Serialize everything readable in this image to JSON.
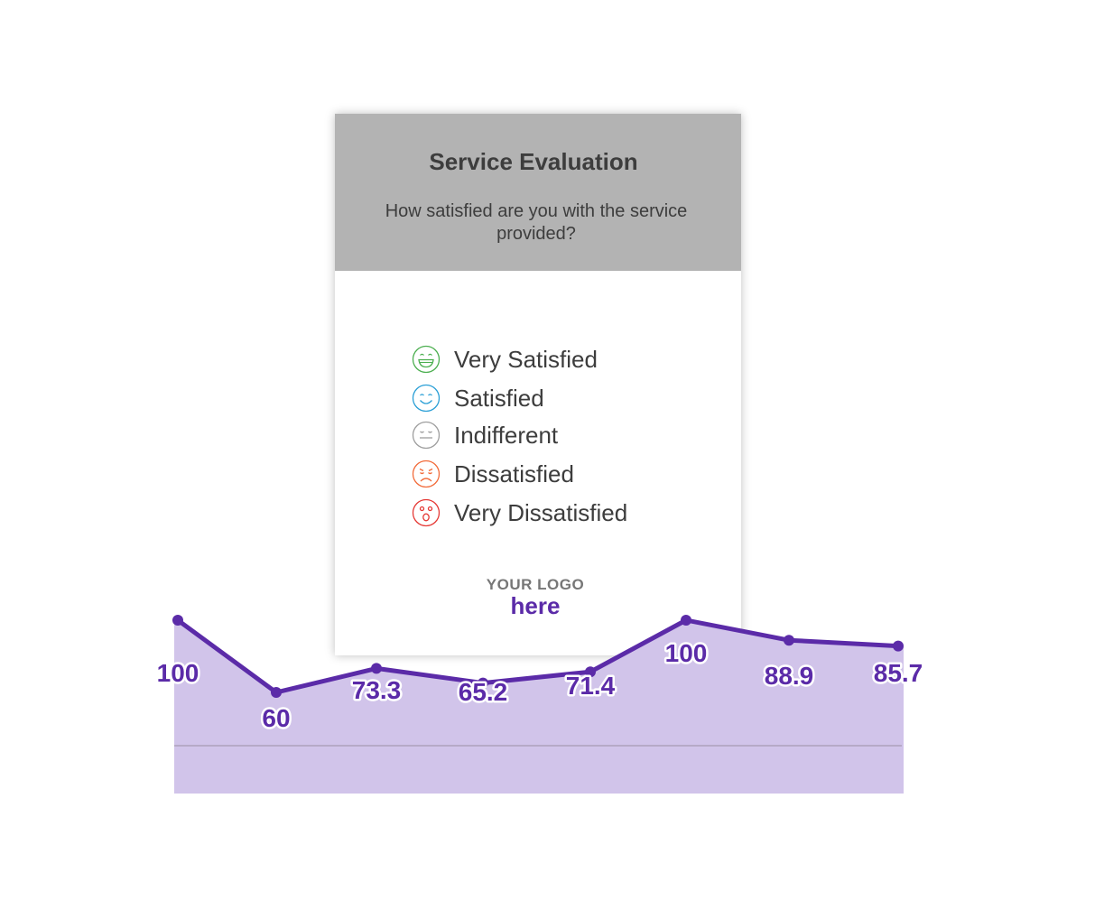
{
  "card": {
    "title": "Service Evaluation",
    "question": "How satisfied are you with the service provided?",
    "header_color": "#b3b3b3",
    "options": [
      {
        "label": "Very Satisfied",
        "icon": "grin-face-icon",
        "color": "#4caf50"
      },
      {
        "label": "Satisfied",
        "icon": "smile-face-icon",
        "color": "#2a9fd6"
      },
      {
        "label": "Indifferent",
        "icon": "neutral-face-icon",
        "color": "#9e9e9e"
      },
      {
        "label": "Dissatisfied",
        "icon": "sad-face-icon",
        "color": "#f26b3a"
      },
      {
        "label": "Very Dissatisfied",
        "icon": "shocked-face-icon",
        "color": "#e53935"
      }
    ],
    "logo": {
      "line1": "YOUR LOGO",
      "line2": "here",
      "accent": "#5b2ba8"
    }
  },
  "chart_data": {
    "type": "area",
    "values": [
      100,
      60,
      73.3,
      65.2,
      71.4,
      100,
      88.9,
      85.7
    ],
    "data_labels": [
      "100",
      "60",
      "73.3",
      "65.2",
      "71.4",
      "100",
      "88.9",
      "85.7"
    ],
    "line_color": "#5b2ba8",
    "fill_color": "#d1c4ea",
    "label_color": "#5b2ba8",
    "baseline_color": "#b6aac7",
    "grid": false,
    "legend": "none"
  }
}
